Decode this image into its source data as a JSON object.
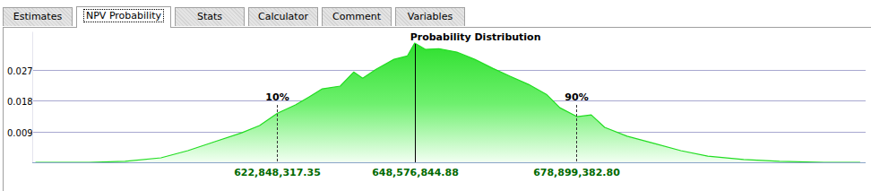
{
  "tabs": {
    "items": [
      "Estimates",
      "NPV Probability",
      "Stats",
      "Calculator",
      "Comment",
      "Variables"
    ],
    "selected": 1
  },
  "chart_data": {
    "type": "area",
    "title": "Probability Distribution",
    "color": "#22dd22",
    "grid": true,
    "tick_labels": "y",
    "xlim": [
      577000000,
      733000000
    ],
    "ylim": [
      0,
      0.038
    ],
    "yticks": [
      0.009,
      0.018,
      0.027
    ],
    "x": [
      577600000,
      587670000,
      594380000,
      601090000,
      606120000,
      611160000,
      616190000,
      619550000,
      622900000,
      626260000,
      628780000,
      631290000,
      634650000,
      637170000,
      638850000,
      641360000,
      644720000,
      647230000,
      648580000,
      650590000,
      653110000,
      656460000,
      659820000,
      663180000,
      666530000,
      669890000,
      673240000,
      675760000,
      678950000,
      681640000,
      684150000,
      688350000,
      693380000,
      698410000,
      703450000,
      710160000,
      716870000,
      725260000,
      731980000
    ],
    "values": [
      0.0,
      0.0,
      0.0003,
      0.0013,
      0.0034,
      0.006,
      0.0086,
      0.0107,
      0.0143,
      0.0167,
      0.019,
      0.0214,
      0.0222,
      0.0263,
      0.0245,
      0.0271,
      0.03,
      0.031,
      0.0347,
      0.0329,
      0.0331,
      0.0321,
      0.03,
      0.0274,
      0.025,
      0.0227,
      0.0198,
      0.0159,
      0.0133,
      0.0138,
      0.0102,
      0.0076,
      0.0055,
      0.0034,
      0.0018,
      0.0008,
      0.0003,
      0.0,
      0.0
    ],
    "markers": [
      {
        "value": 622848317.35,
        "label": "622,848,317.35",
        "percentile": "10%",
        "line_style": "dashed"
      },
      {
        "value": 648576844.88,
        "label": "648,576,844.88",
        "line_style": "solid"
      },
      {
        "value": 678899382.8,
        "label": "678,899,382.80",
        "percentile": "90%",
        "line_style": "dashed"
      }
    ]
  }
}
